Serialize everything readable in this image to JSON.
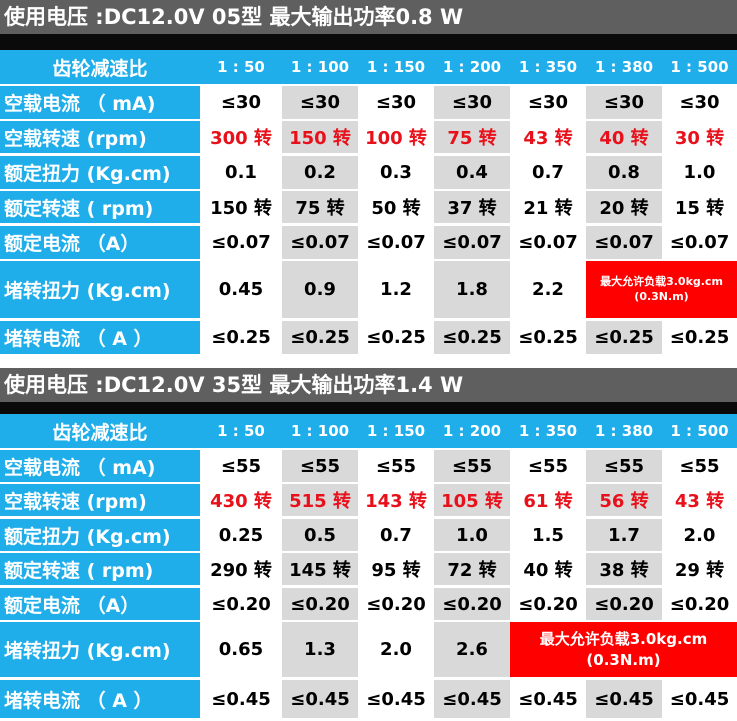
{
  "sections": [
    {
      "title": "使用电压 :DC12.0V 05型 最大输出功率0.8 W",
      "header_label": "齿轮减速比",
      "ratios": [
        "1 : 50",
        "1 : 100",
        "1 : 150",
        "1 : 200",
        "1 : 350",
        "1 : 380",
        "1 : 500"
      ],
      "rows": [
        {
          "label": "空载电流 （ mA)",
          "values": [
            "≤30",
            "≤30",
            "≤30",
            "≤30",
            "≤30",
            "≤30",
            "≤30"
          ]
        },
        {
          "label": "空载转速  (rpm)",
          "values": [
            "300 转",
            "150 转",
            "100 转",
            "75 转",
            "43 转",
            "40 转",
            "30 转"
          ]
        },
        {
          "label": "额定扭力  (Kg.cm)",
          "values": [
            "0.1",
            "0.2",
            "0.3",
            "0.4",
            "0.7",
            "0.8",
            "1.0"
          ]
        },
        {
          "label": "额定转速  ( rpm)",
          "values": [
            "150 转",
            "75 转",
            "50 转",
            "37 转",
            "21 转",
            "20 转",
            "15 转"
          ]
        },
        {
          "label": "额定电流  （A）",
          "values": [
            "≤0.07",
            "≤0.07",
            "≤0.07",
            "≤0.07",
            "≤0.07",
            "≤0.07",
            "≤0.07"
          ]
        },
        {
          "label": "堵转扭力  (Kg.cm)",
          "values": [
            "0.45",
            "0.9",
            "1.2",
            "1.8",
            "2.2"
          ],
          "note": [
            "最大允许负载3.0kg.cm",
            "(0.3N.m)"
          ]
        },
        {
          "label": "堵转电流  （ A ）",
          "values": [
            "≤0.25",
            "≤0.25",
            "≤0.25",
            "≤0.25",
            "≤0.25",
            "≤0.25",
            "≤0.25"
          ]
        }
      ]
    },
    {
      "title": "使用电压 :DC12.0V 35型 最大输出功率1.4 W",
      "header_label": "齿轮减速比",
      "ratios": [
        "1 : 50",
        "1 : 100",
        "1 : 150",
        "1 : 200",
        "1 : 350",
        "1 : 380",
        "1 : 500"
      ],
      "rows": [
        {
          "label": "空载电流 （ mA)",
          "values": [
            "≤55",
            "≤55",
            "≤55",
            "≤55",
            "≤55",
            "≤55",
            "≤55"
          ]
        },
        {
          "label": "空载转速  (rpm)",
          "values": [
            "430 转",
            "515 转",
            "143 转",
            "105 转",
            "61 转",
            "56 转",
            "43 转"
          ]
        },
        {
          "label": "额定扭力  (Kg.cm)",
          "values": [
            "0.25",
            "0.5",
            "0.7",
            "1.0",
            "1.5",
            "1.7",
            "2.0"
          ]
        },
        {
          "label": "额定转速  ( rpm)",
          "values": [
            "290 转",
            "145 转",
            "95 转",
            "72 转",
            "40 转",
            "38 转",
            "29 转"
          ]
        },
        {
          "label": "额定电流  （A）",
          "values": [
            "≤0.20",
            "≤0.20",
            "≤0.20",
            "≤0.20",
            "≤0.20",
            "≤0.20",
            "≤0.20"
          ]
        },
        {
          "label": "堵转扭力  (Kg.cm)",
          "values": [
            "0.65",
            "1.3",
            "2.0",
            "2.6"
          ],
          "note": [
            "最大允许负载3.0kg.cm",
            "(0.3N.m)"
          ]
        },
        {
          "label": "堵转电流  （ A ）",
          "values": [
            "≤0.45",
            "≤0.45",
            "≤0.45",
            "≤0.45",
            "≤0.45",
            "≤0.45",
            "≤0.45"
          ]
        }
      ]
    }
  ],
  "colors": {
    "title_bg": "#5f5f5f",
    "row_bg": "#1faeea",
    "cell_white": "#ffffff",
    "cell_gray": "#d9d9d9",
    "speed_text": "#e8101a",
    "note_bg": "#ff0000"
  }
}
